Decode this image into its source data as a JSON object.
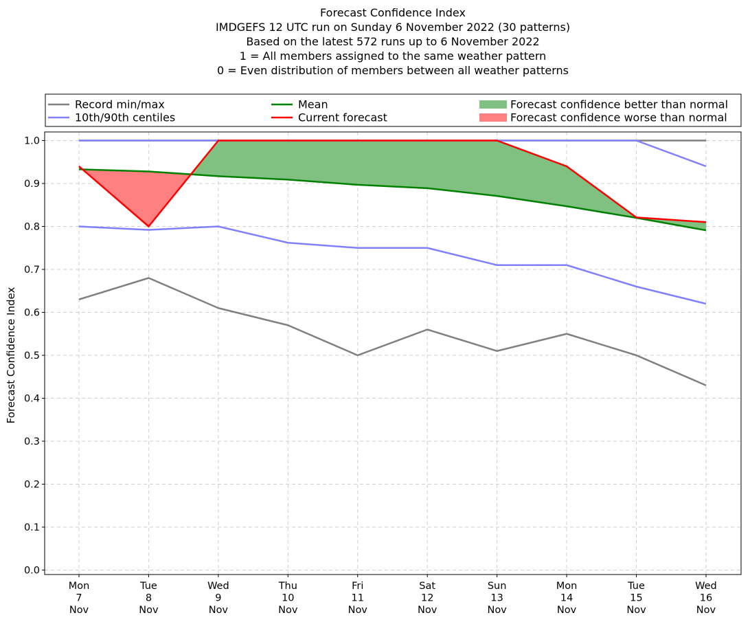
{
  "chart_data": {
    "type": "line",
    "title_lines": [
      "Forecast Confidence Index",
      "IMDGEFS 12 UTC run on Sunday 6 November 2022 (30 patterns)",
      "Based on the latest 572 runs up to 6 November 2022",
      "1 = All members assigned to the same weather pattern",
      "0 = Even distribution of members between all weather patterns"
    ],
    "ylabel": "Forecast Confidence Index",
    "xlabel": "",
    "ylim": [
      0,
      1
    ],
    "yticks": [
      "0.0",
      "0.1",
      "0.2",
      "0.3",
      "0.4",
      "0.5",
      "0.6",
      "0.7",
      "0.8",
      "0.9",
      "1.0"
    ],
    "categories": [
      [
        "Mon",
        "7",
        "Nov"
      ],
      [
        "Tue",
        "8",
        "Nov"
      ],
      [
        "Wed",
        "9",
        "Nov"
      ],
      [
        "Thu",
        "10",
        "Nov"
      ],
      [
        "Fri",
        "11",
        "Nov"
      ],
      [
        "Sat",
        "12",
        "Nov"
      ],
      [
        "Sun",
        "13",
        "Nov"
      ],
      [
        "Mon",
        "14",
        "Nov"
      ],
      [
        "Tue",
        "15",
        "Nov"
      ],
      [
        "Wed",
        "16",
        "Nov"
      ]
    ],
    "grid": true,
    "legend_position": "top",
    "series": [
      {
        "key": "record_max",
        "name": "Record min/max",
        "color": "#808080",
        "values": [
          1.0,
          1.0,
          1.0,
          1.0,
          1.0,
          1.0,
          1.0,
          1.0,
          1.0,
          1.0
        ]
      },
      {
        "key": "record_min",
        "name": "Record min/max",
        "color": "#808080",
        "values": [
          0.63,
          0.68,
          0.61,
          0.57,
          0.5,
          0.56,
          0.51,
          0.55,
          0.5,
          0.43
        ]
      },
      {
        "key": "p90",
        "name": "10th/90th centiles",
        "color": "#8080ff",
        "values": [
          1.0,
          1.0,
          1.0,
          1.0,
          1.0,
          1.0,
          1.0,
          1.0,
          1.0,
          0.94
        ]
      },
      {
        "key": "p10",
        "name": "10th/90th centiles",
        "color": "#8080ff",
        "values": [
          0.8,
          0.792,
          0.8,
          0.762,
          0.75,
          0.75,
          0.71,
          0.71,
          0.66,
          0.62
        ]
      },
      {
        "key": "mean",
        "name": "Mean",
        "color": "#008000",
        "values": [
          0.933,
          0.928,
          0.917,
          0.909,
          0.897,
          0.889,
          0.871,
          0.847,
          0.82,
          0.791
        ]
      },
      {
        "key": "current",
        "name": "Current forecast",
        "color": "#ff0000",
        "values": [
          0.94,
          0.8,
          1.0,
          1.0,
          1.0,
          1.0,
          1.0,
          0.94,
          0.821,
          0.81
        ]
      }
    ],
    "fills": [
      {
        "name": "Forecast confidence better than normal",
        "color": "#80c080"
      },
      {
        "name": "Forecast confidence worse than normal",
        "color": "#ff8080"
      }
    ],
    "legend": [
      {
        "label": "Record min/max",
        "kind": "line",
        "color": "#808080"
      },
      {
        "label": "10th/90th centiles",
        "kind": "line",
        "color": "#8080ff"
      },
      {
        "label": "Mean",
        "kind": "line",
        "color": "#008000"
      },
      {
        "label": "Current forecast",
        "kind": "line",
        "color": "#ff0000"
      },
      {
        "label": "Forecast confidence better than normal",
        "kind": "patch",
        "color": "#80c080"
      },
      {
        "label": "Forecast confidence worse than normal",
        "kind": "patch",
        "color": "#ff8080"
      }
    ]
  }
}
